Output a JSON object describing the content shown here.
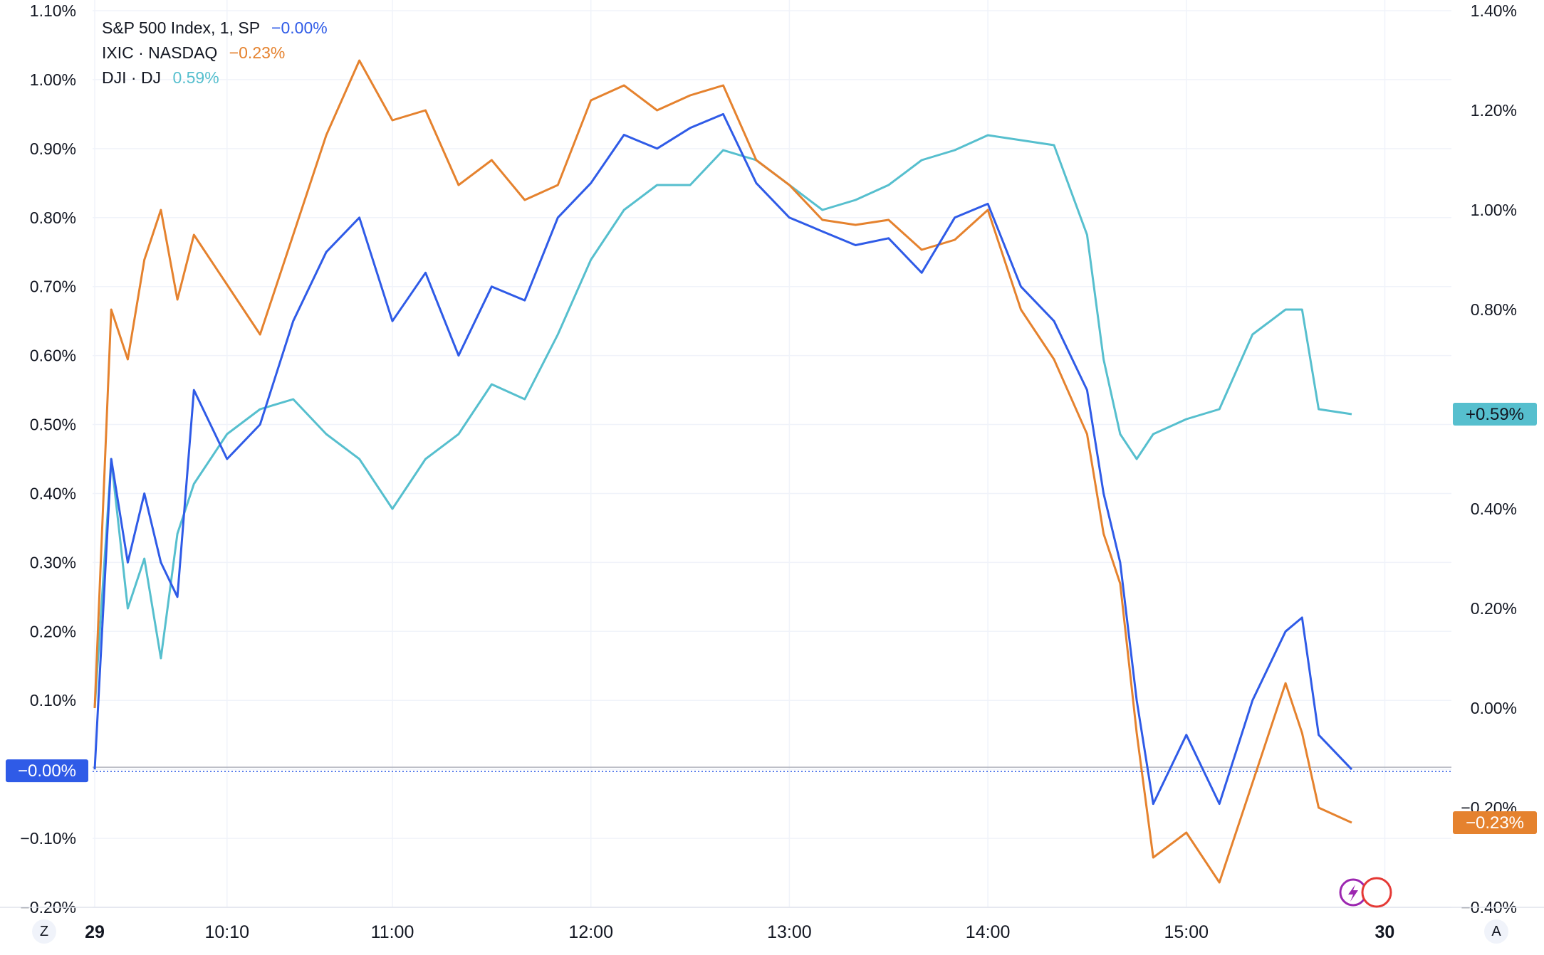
{
  "legend": [
    {
      "label": "S&P 500 Index, 1, SP",
      "value": "−0.00%",
      "color": "#2f5be7"
    },
    {
      "label": "IXIC · NASDAQ",
      "value": "−0.23%",
      "color": "#e5822e"
    },
    {
      "label": "DJI · DJ",
      "value": "0.59%",
      "color": "#56bfce"
    }
  ],
  "left_axis_labels": [
    "1.10%",
    "1.00%",
    "0.90%",
    "0.80%",
    "0.70%",
    "0.60%",
    "0.50%",
    "0.40%",
    "0.30%",
    "0.20%",
    "0.10%",
    "−0.00%",
    "−0.10%",
    "−0.20%"
  ],
  "right_axis_labels": [
    "1.40%",
    "1.20%",
    "1.00%",
    "0.80%",
    "0.60%",
    "0.40%",
    "0.20%",
    "0.00%",
    "−0.20%",
    "−0.40%"
  ],
  "time_labels": [
    "29",
    "10:10",
    "11:00",
    "12:00",
    "13:00",
    "14:00",
    "15:00",
    "30"
  ],
  "badges": {
    "left": "−0.00%",
    "right_dji": "+0.59%",
    "right_nasdaq": "−0.23%"
  },
  "buttons": {
    "timezone": "Z",
    "auto": "A"
  },
  "colors": {
    "sp500": "#2f5be7",
    "nasdaq": "#e5822e",
    "dji": "#56bfce",
    "grid": "#f0f3fa"
  },
  "chart_data": {
    "type": "line",
    "x": [
      "09:30",
      "09:35",
      "09:40",
      "09:45",
      "09:50",
      "09:55",
      "10:00",
      "10:10",
      "10:20",
      "10:30",
      "10:40",
      "10:50",
      "11:00",
      "11:10",
      "11:20",
      "11:30",
      "11:40",
      "11:50",
      "12:00",
      "12:10",
      "12:20",
      "12:30",
      "12:40",
      "12:50",
      "13:00",
      "13:10",
      "13:20",
      "13:30",
      "13:40",
      "13:50",
      "14:00",
      "14:10",
      "14:20",
      "14:30",
      "14:35",
      "14:40",
      "14:45",
      "14:50",
      "15:00",
      "15:10",
      "15:20",
      "15:30",
      "15:35",
      "15:40",
      "15:50"
    ],
    "series": [
      {
        "name": "S&P 500 Index, 1, SP",
        "axis": "left",
        "values": [
          0.0,
          0.45,
          0.3,
          0.4,
          0.3,
          0.25,
          0.55,
          0.45,
          0.5,
          0.65,
          0.75,
          0.8,
          0.65,
          0.72,
          0.6,
          0.7,
          0.68,
          0.8,
          0.85,
          0.92,
          0.9,
          0.93,
          0.95,
          0.85,
          0.8,
          0.78,
          0.76,
          0.77,
          0.72,
          0.8,
          0.82,
          0.7,
          0.65,
          0.55,
          0.4,
          0.3,
          0.1,
          -0.05,
          0.05,
          -0.05,
          0.1,
          0.2,
          0.22,
          0.05,
          0.0
        ]
      },
      {
        "name": "IXIC · NASDAQ",
        "axis": "right",
        "values": [
          0.0,
          0.8,
          0.7,
          0.9,
          1.0,
          0.82,
          0.95,
          0.85,
          0.75,
          0.95,
          1.15,
          1.3,
          1.18,
          1.2,
          1.05,
          1.1,
          1.02,
          1.05,
          1.22,
          1.25,
          1.2,
          1.23,
          1.25,
          1.1,
          1.05,
          0.98,
          0.97,
          0.98,
          0.92,
          0.94,
          1.0,
          0.8,
          0.7,
          0.55,
          0.35,
          0.25,
          -0.05,
          -0.3,
          -0.25,
          -0.35,
          -0.15,
          0.05,
          -0.05,
          -0.2,
          -0.23
        ]
      },
      {
        "name": "DJI · DJ",
        "axis": "right",
        "values": [
          0.0,
          0.5,
          0.2,
          0.3,
          0.1,
          0.35,
          0.45,
          0.55,
          0.6,
          0.62,
          0.55,
          0.5,
          0.4,
          0.5,
          0.55,
          0.65,
          0.62,
          0.75,
          0.9,
          1.0,
          1.05,
          1.05,
          1.12,
          1.1,
          1.05,
          1.0,
          1.02,
          1.05,
          1.1,
          1.12,
          1.15,
          1.14,
          1.13,
          0.95,
          0.7,
          0.55,
          0.5,
          0.55,
          0.58,
          0.6,
          0.75,
          0.8,
          0.8,
          0.6,
          0.59
        ]
      }
    ],
    "ylim_left": [
      -0.2,
      1.1
    ],
    "ylim_right": [
      -0.4,
      1.4
    ],
    "ylabel_left": "",
    "ylabel_right": "",
    "xlabel": "",
    "title": "",
    "grid": true,
    "legend_position": "top-left"
  }
}
